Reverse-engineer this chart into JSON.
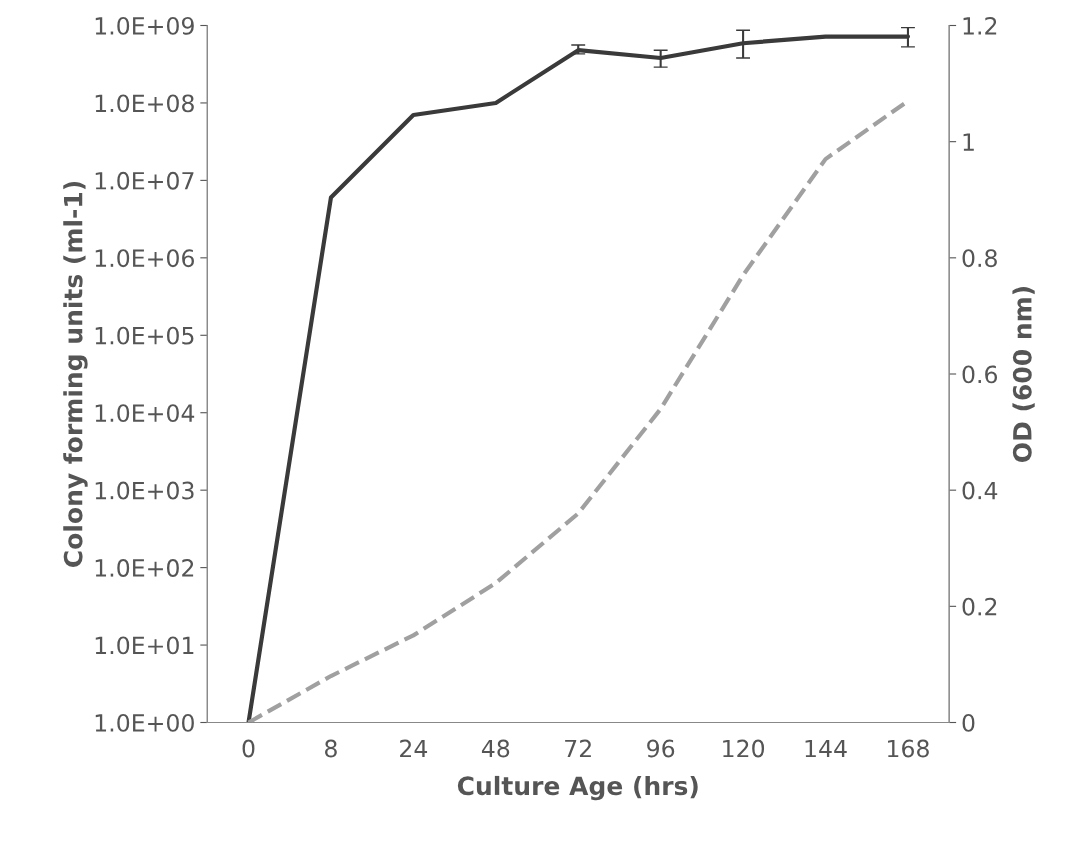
{
  "chart_data": {
    "type": "line",
    "xlabel": "Culture Age (hrs)",
    "ylabel": "Colony forming units (ml-1)",
    "y2label": "OD (600 nm)",
    "categories": [
      "0",
      "8",
      "24",
      "48",
      "72",
      "96",
      "120",
      "144",
      "168"
    ],
    "log": "y",
    "ylim": [
      1,
      1000000000
    ],
    "yticks": [
      {
        "value": 1,
        "label": "1.0E+00"
      },
      {
        "value": 10,
        "label": "1.0E+01"
      },
      {
        "value": 100,
        "label": "1.0E+02"
      },
      {
        "value": 1000,
        "label": "1.0E+03"
      },
      {
        "value": 10000,
        "label": "1.0E+04"
      },
      {
        "value": 100000,
        "label": "1.0E+05"
      },
      {
        "value": 1000000,
        "label": "1.0E+06"
      },
      {
        "value": 10000000,
        "label": "1.0E+07"
      },
      {
        "value": 100000000,
        "label": "1.0E+08"
      },
      {
        "value": 1000000000,
        "label": "1.0E+09"
      }
    ],
    "y2lim": [
      0,
      1.2
    ],
    "y2ticks": [
      0,
      0.2,
      0.4,
      0.6,
      0.8,
      1,
      1.2
    ],
    "grid": false,
    "legend": false,
    "marker": "none",
    "series": [
      {
        "color": "#3a3a3a",
        "line_style": "solid",
        "values": [
          1,
          6000000,
          70000000,
          100000000,
          480000000,
          380000000,
          590000000,
          720000000,
          720000000
        ],
        "errors": [
          null,
          null,
          null,
          null,
          [
            430000000,
            560000000
          ],
          [
            290000000,
            480000000
          ],
          [
            380000000,
            870000000
          ],
          null,
          [
            530000000,
            940000000
          ]
        ]
      },
      {
        "color": "#a0a0a0",
        "line_style": "dashed",
        "axis": "y2",
        "values": [
          0,
          0.08,
          0.15,
          0.24,
          0.36,
          0.54,
          0.77,
          0.97,
          1.07
        ]
      }
    ]
  }
}
